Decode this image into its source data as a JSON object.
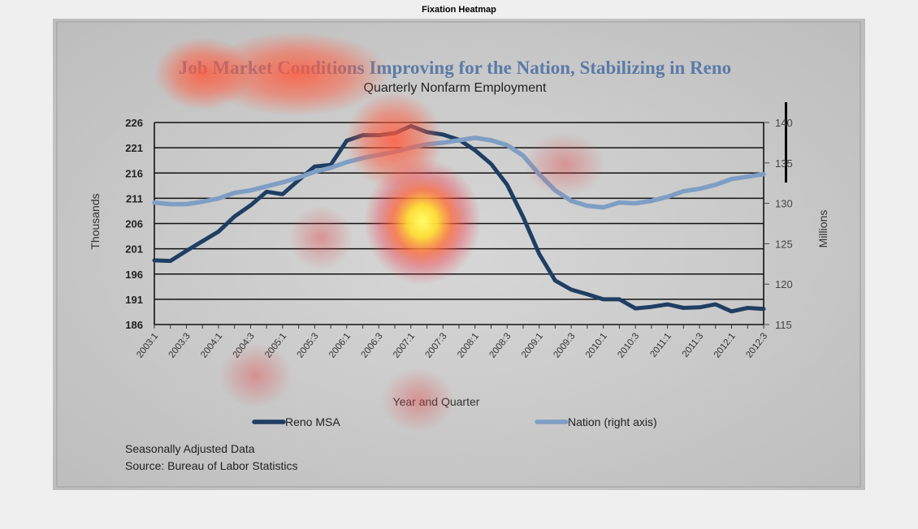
{
  "figure": {
    "title": "Fixation Heatmap"
  },
  "chart_data": {
    "type": "line",
    "title": "Job  Market Conditions Improving for the Nation, Stabilizing in Reno",
    "subtitle": "Quarterly Nonfarm Employment",
    "xlabel": "Year and Quarter",
    "ylabel": "Thousands",
    "y2label": "Millions",
    "ylim": [
      186,
      226
    ],
    "y2lim": [
      115,
      140
    ],
    "yticks": [
      226,
      221,
      216,
      211,
      206,
      201,
      196,
      191,
      186
    ],
    "y2ticks": [
      140,
      135,
      130,
      125,
      120,
      115
    ],
    "categories": [
      "2003:1",
      "2003:2",
      "2003:3",
      "2003:4",
      "2004:1",
      "2004:2",
      "2004:3",
      "2004:4",
      "2005:1",
      "2005:2",
      "2005:3",
      "2005:4",
      "2006:1",
      "2006:2",
      "2006:3",
      "2006:4",
      "2007:1",
      "2007:2",
      "2007:3",
      "2007:4",
      "2008:1",
      "2008:2",
      "2008:3",
      "2008:4",
      "2009:1",
      "2009:2",
      "2009:3",
      "2009:4",
      "2010:1",
      "2010:2",
      "2010:3",
      "2010:4",
      "2011:1",
      "2011:2",
      "2011:3",
      "2011:4",
      "2012:1",
      "2012:2",
      "2012:3"
    ],
    "xtick_labels": [
      "2003:1",
      "2003:3",
      "2004:1",
      "2004:3",
      "2005:1",
      "2005:3",
      "2006:1",
      "2006:3",
      "2007:1",
      "2007:3",
      "2008:1",
      "2008:3",
      "2009:1",
      "2009:3",
      "2010:1",
      "2010:3",
      "2011:1",
      "2011:3",
      "2012:1",
      "2012:3"
    ],
    "series": [
      {
        "name": "Reno MSA",
        "axis": "left",
        "color": "#1f3e63",
        "values": [
          198.7,
          198.6,
          200.6,
          202.5,
          204.4,
          207.4,
          209.6,
          212.3,
          211.8,
          214.6,
          217.3,
          217.6,
          222.4,
          223.5,
          223.5,
          223.9,
          225.3,
          224.1,
          223.6,
          222.6,
          220.5,
          217.8,
          213.7,
          207.3,
          200.0,
          194.7,
          192.9,
          192.0,
          191.0,
          191.0,
          189.2,
          189.5,
          190.0,
          189.3,
          189.4,
          190.0,
          188.6,
          189.3,
          189.1
        ]
      },
      {
        "name": "Nation (right axis)",
        "axis": "right",
        "color": "#7f9ec4",
        "values": [
          130.1,
          129.9,
          129.9,
          130.2,
          130.6,
          131.3,
          131.6,
          132.1,
          132.6,
          133.2,
          133.9,
          134.4,
          135.1,
          135.6,
          136.0,
          136.4,
          136.9,
          137.3,
          137.5,
          137.8,
          138.1,
          137.8,
          137.2,
          135.9,
          133.6,
          131.6,
          130.3,
          129.7,
          129.5,
          130.1,
          130.0,
          130.3,
          130.8,
          131.5,
          131.8,
          132.3,
          133.0,
          133.3,
          133.6
        ]
      }
    ],
    "legend": [
      "Reno MSA",
      "Nation (right axis)"
    ],
    "notes": [
      "Seasonally Adjusted Data",
      "Source: Bureau of Labor  Statistics"
    ],
    "heatmap_overlay": true
  }
}
